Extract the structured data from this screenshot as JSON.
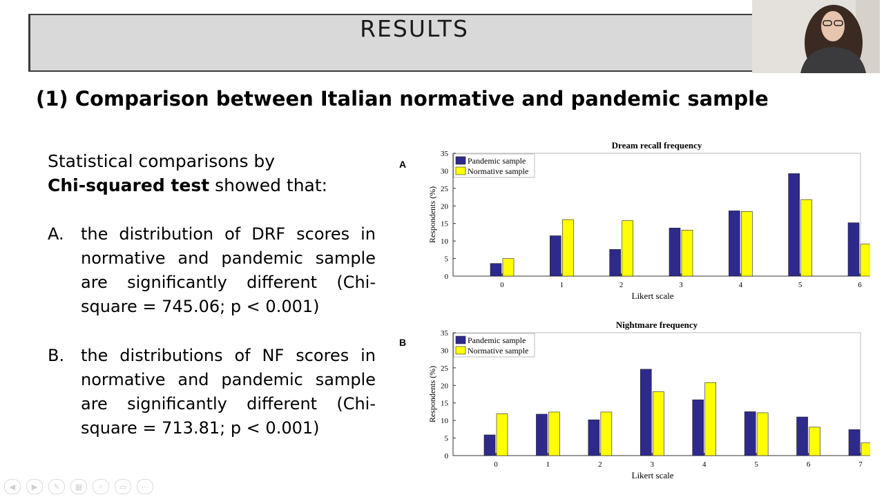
{
  "slide": {
    "title": "RESULTS",
    "subtitle": "(1) Comparison between Italian normative and pandemic sample",
    "intro_line1": "Statistical comparisons by",
    "intro_bold": "Chi-squared test",
    "intro_rest": " showed that:",
    "items": [
      {
        "marker": "A.",
        "text": "the distribution of DRF scores in normative and pandemic sample are significantly different (Chi-square = 745.06; p < 0.001)"
      },
      {
        "marker": "B.",
        "text": "the distributions of NF scores in normative and pandemic sample are significantly different (Chi-square = 713.81; p < 0.001)"
      }
    ]
  },
  "colors": {
    "pandemic": "#2e2a8c",
    "normative": "#ffff00"
  },
  "icons": [
    "webcam-video-feed",
    "slideshow-toolbar-icons"
  ],
  "chart_data": [
    {
      "panel_label": "A",
      "type": "bar",
      "title": "Dream recall frequency",
      "xlabel": "Likert scale",
      "ylabel": "Respondents (%)",
      "ylim": [
        0,
        35
      ],
      "yticks": [
        0,
        5,
        10,
        15,
        20,
        25,
        30,
        35
      ],
      "categories": [
        "0",
        "1",
        "2",
        "3",
        "4",
        "5",
        "6"
      ],
      "legend_placement": "top-left",
      "series": [
        {
          "name": "Pandemic sample",
          "values": [
            3.6,
            11.5,
            7.6,
            13.7,
            18.6,
            29.2,
            15.2
          ]
        },
        {
          "name": "Normative sample",
          "values": [
            5.0,
            16.1,
            15.8,
            13.1,
            18.4,
            21.8,
            9.1
          ]
        }
      ]
    },
    {
      "panel_label": "B",
      "type": "bar",
      "title": "Nightmare frequency",
      "xlabel": "Likert scale",
      "ylabel": "Respondents (%)",
      "ylim": [
        0,
        35
      ],
      "yticks": [
        0,
        5,
        10,
        15,
        20,
        25,
        30,
        35
      ],
      "categories": [
        "0",
        "1",
        "2",
        "3",
        "4",
        "5",
        "6",
        "7"
      ],
      "legend_placement": "top-left",
      "series": [
        {
          "name": "Pandemic sample",
          "values": [
            5.9,
            11.8,
            10.2,
            24.6,
            15.9,
            12.5,
            11.0,
            7.4
          ]
        },
        {
          "name": "Normative sample",
          "values": [
            11.9,
            12.4,
            12.4,
            18.2,
            20.8,
            12.2,
            8.1,
            3.6
          ]
        }
      ]
    }
  ]
}
